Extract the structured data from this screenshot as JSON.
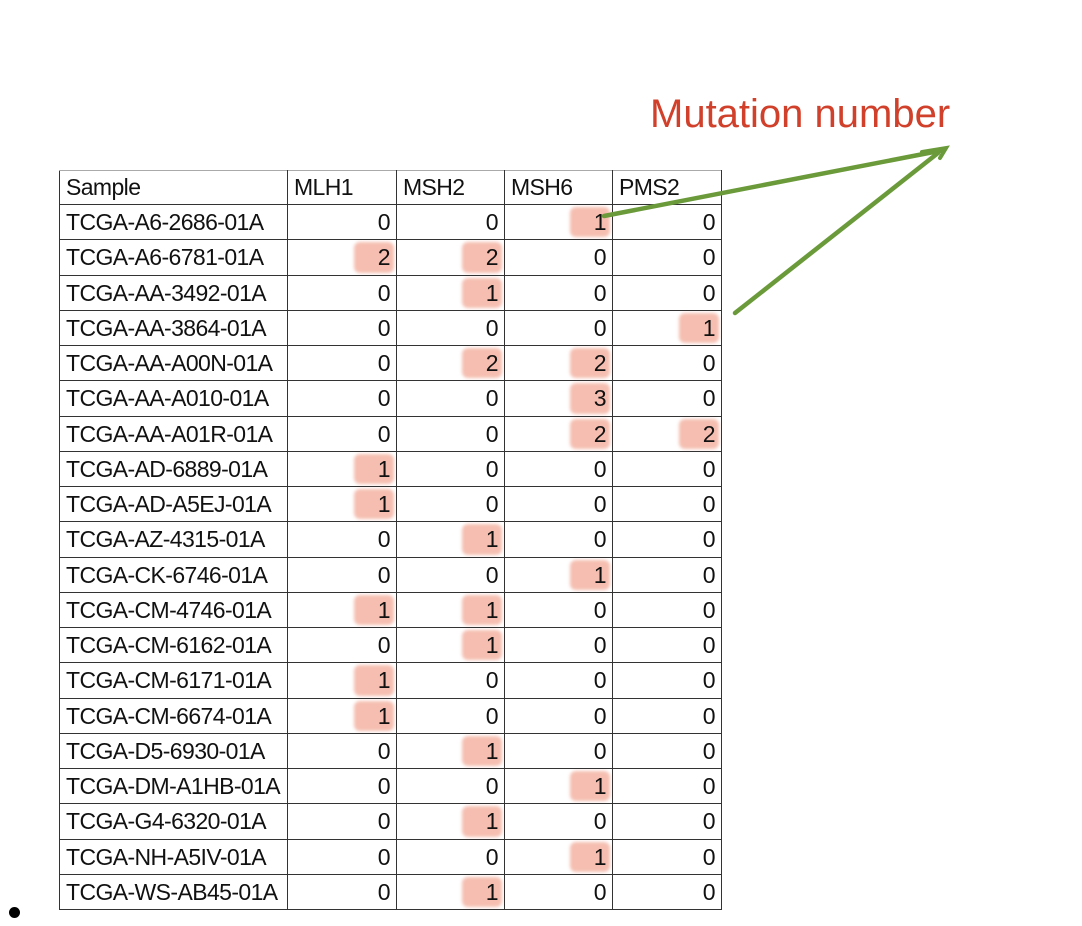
{
  "annotation": {
    "title": "Mutation number",
    "arrow_color": "#6a9a3a",
    "title_color": "#d0402a"
  },
  "highlight_color": "#e86e50",
  "table": {
    "headers": [
      "Sample",
      "MLH1",
      "MSH2",
      "MSH6",
      "PMS2"
    ],
    "rows": [
      {
        "sample": "TCGA-A6-2686-01A",
        "values": [
          0,
          0,
          1,
          0
        ],
        "highlight": [
          false,
          false,
          true,
          false
        ]
      },
      {
        "sample": "TCGA-A6-6781-01A",
        "values": [
          2,
          2,
          0,
          0
        ],
        "highlight": [
          true,
          true,
          false,
          false
        ]
      },
      {
        "sample": "TCGA-AA-3492-01A",
        "values": [
          0,
          1,
          0,
          0
        ],
        "highlight": [
          false,
          true,
          false,
          false
        ]
      },
      {
        "sample": "TCGA-AA-3864-01A",
        "values": [
          0,
          0,
          0,
          1
        ],
        "highlight": [
          false,
          false,
          false,
          true
        ]
      },
      {
        "sample": "TCGA-AA-A00N-01A",
        "values": [
          0,
          2,
          2,
          0
        ],
        "highlight": [
          false,
          true,
          true,
          false
        ]
      },
      {
        "sample": "TCGA-AA-A010-01A",
        "values": [
          0,
          0,
          3,
          0
        ],
        "highlight": [
          false,
          false,
          true,
          false
        ]
      },
      {
        "sample": "TCGA-AA-A01R-01A",
        "values": [
          0,
          0,
          2,
          2
        ],
        "highlight": [
          false,
          false,
          true,
          true
        ]
      },
      {
        "sample": "TCGA-AD-6889-01A",
        "values": [
          1,
          0,
          0,
          0
        ],
        "highlight": [
          true,
          false,
          false,
          false
        ]
      },
      {
        "sample": "TCGA-AD-A5EJ-01A",
        "values": [
          1,
          0,
          0,
          0
        ],
        "highlight": [
          true,
          false,
          false,
          false
        ]
      },
      {
        "sample": "TCGA-AZ-4315-01A",
        "values": [
          0,
          1,
          0,
          0
        ],
        "highlight": [
          false,
          true,
          false,
          false
        ]
      },
      {
        "sample": "TCGA-CK-6746-01A",
        "values": [
          0,
          0,
          1,
          0
        ],
        "highlight": [
          false,
          false,
          true,
          false
        ]
      },
      {
        "sample": "TCGA-CM-4746-01A",
        "values": [
          1,
          1,
          0,
          0
        ],
        "highlight": [
          true,
          true,
          false,
          false
        ]
      },
      {
        "sample": "TCGA-CM-6162-01A",
        "values": [
          0,
          1,
          0,
          0
        ],
        "highlight": [
          false,
          true,
          false,
          false
        ]
      },
      {
        "sample": "TCGA-CM-6171-01A",
        "values": [
          1,
          0,
          0,
          0
        ],
        "highlight": [
          true,
          false,
          false,
          false
        ]
      },
      {
        "sample": "TCGA-CM-6674-01A",
        "values": [
          1,
          0,
          0,
          0
        ],
        "highlight": [
          true,
          false,
          false,
          false
        ]
      },
      {
        "sample": "TCGA-D5-6930-01A",
        "values": [
          0,
          1,
          0,
          0
        ],
        "highlight": [
          false,
          true,
          false,
          false
        ]
      },
      {
        "sample": "TCGA-DM-A1HB-01A",
        "values": [
          0,
          0,
          1,
          0
        ],
        "highlight": [
          false,
          false,
          true,
          false
        ]
      },
      {
        "sample": "TCGA-G4-6320-01A",
        "values": [
          0,
          1,
          0,
          0
        ],
        "highlight": [
          false,
          true,
          false,
          false
        ]
      },
      {
        "sample": "TCGA-NH-A5IV-01A",
        "values": [
          0,
          0,
          1,
          0
        ],
        "highlight": [
          false,
          false,
          true,
          false
        ]
      },
      {
        "sample": "TCGA-WS-AB45-01A",
        "values": [
          0,
          1,
          0,
          0
        ],
        "highlight": [
          false,
          true,
          false,
          false
        ]
      }
    ]
  }
}
